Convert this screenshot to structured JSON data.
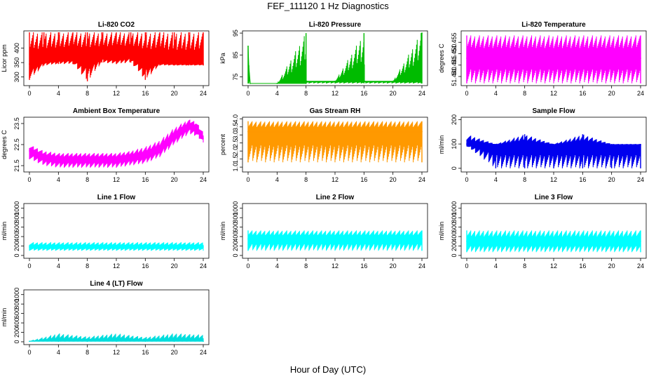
{
  "figure": {
    "title": "FEF_111120  1 Hz Diagnostics",
    "xlabel": "Hour of Day (UTC)"
  },
  "chart_data": [
    {
      "type": "line",
      "title": "Li-820 CO2",
      "ylabel": "Licor ppm",
      "color": "#ff0000",
      "xlim": [
        0,
        24
      ],
      "ylim": [
        270,
        460
      ],
      "xticks": [
        0,
        4,
        8,
        12,
        16,
        20,
        24
      ],
      "yticks": [
        300,
        350,
        400
      ],
      "series": [
        {
          "x": [
            0,
            2,
            4,
            6,
            8,
            10,
            12,
            14,
            16,
            18,
            20,
            22,
            24
          ],
          "y": [
            345,
            355,
            360,
            365,
            360,
            370,
            365,
            375,
            350,
            350,
            345,
            345,
            345
          ],
          "min": [
            290,
            340,
            345,
            345,
            285,
            350,
            345,
            350,
            290,
            340,
            340,
            340,
            340
          ],
          "max": [
            455,
            455,
            455,
            455,
            455,
            455,
            455,
            455,
            455,
            455,
            455,
            455,
            455
          ]
        }
      ]
    },
    {
      "type": "line",
      "title": "Li-820 Pressure",
      "ylabel": "kPa",
      "color": "#00bb00",
      "xlim": [
        0,
        24
      ],
      "ylim": [
        71,
        96
      ],
      "xticks": [
        0,
        4,
        8,
        12,
        16,
        20,
        24
      ],
      "yticks": [
        75,
        85,
        95
      ],
      "series": [
        {
          "x": [
            0,
            0.1,
            0.3,
            4,
            8,
            8.1,
            12,
            16,
            16.1,
            20,
            23.9,
            24
          ],
          "y": [
            89,
            80,
            72,
            72,
            72,
            73,
            73,
            73,
            73,
            73,
            73,
            95
          ],
          "min": [
            72,
            72,
            72,
            72,
            72,
            72,
            72,
            72,
            72,
            72,
            72,
            72
          ],
          "max": [
            89,
            80,
            72,
            72,
            95,
            73,
            73,
            95,
            73,
            73,
            95,
            95
          ]
        }
      ]
    },
    {
      "type": "area",
      "title": "Li-820 Temperature",
      "ylabel": "degrees C",
      "color": "#ff00ff",
      "xlim": [
        0,
        24
      ],
      "ylim": [
        51.436,
        51.46
      ],
      "xticks": [
        0,
        4,
        8,
        12,
        16,
        20,
        24
      ],
      "yticks": [
        51.44,
        51.445,
        51.45,
        51.455
      ],
      "series": [
        {
          "x": [
            0,
            24
          ],
          "y": [
            51.448,
            51.448
          ],
          "min": [
            51.437,
            51.437
          ],
          "max": [
            51.458,
            51.458
          ]
        }
      ]
    },
    {
      "type": "line",
      "title": "Ambient Box Temperature",
      "ylabel": "degrees C",
      "color": "#ff00ff",
      "xlim": [
        0,
        24
      ],
      "ylim": [
        21.2,
        23.8
      ],
      "xticks": [
        0,
        4,
        8,
        12,
        16,
        20,
        24
      ],
      "yticks": [
        21.5,
        22.5,
        23.5
      ],
      "series": [
        {
          "x": [
            0,
            2,
            4,
            6,
            8,
            10,
            12,
            14,
            16,
            18,
            20,
            22,
            23,
            24
          ],
          "y": [
            22.2,
            21.9,
            21.8,
            21.8,
            21.8,
            21.8,
            21.8,
            21.9,
            22.0,
            22.3,
            22.9,
            23.4,
            23.3,
            22.8
          ],
          "min": [
            21.8,
            21.5,
            21.4,
            21.4,
            21.4,
            21.4,
            21.4,
            21.5,
            21.6,
            21.9,
            22.5,
            23.0,
            22.9,
            22.6
          ],
          "max": [
            22.5,
            22.2,
            22.1,
            22.1,
            22.1,
            22.1,
            22.1,
            22.2,
            22.4,
            22.7,
            23.3,
            23.7,
            23.6,
            23.1
          ]
        }
      ]
    },
    {
      "type": "scatter",
      "title": "Gas Stream RH",
      "ylabel": "percent",
      "color": "#ff9900",
      "xlim": [
        0,
        24
      ],
      "ylim": [
        0.7,
        4.1
      ],
      "xticks": [
        0,
        4,
        8,
        12,
        16,
        20,
        24
      ],
      "yticks": [
        1.0,
        1.5,
        2.0,
        2.5,
        3.0,
        3.5,
        4.0
      ],
      "series": [
        {
          "x": [
            0,
            24
          ],
          "y": [
            3.2,
            3.2
          ],
          "min": [
            1.3,
            1.3
          ],
          "max": [
            3.85,
            3.85
          ]
        }
      ]
    },
    {
      "type": "line",
      "title": "Sample Flow",
      "ylabel": "ml/min",
      "color": "#0000ee",
      "xlim": [
        0,
        24
      ],
      "ylim": [
        -15,
        210
      ],
      "xticks": [
        0,
        4,
        8,
        12,
        16,
        20,
        24
      ],
      "yticks": [
        0,
        100,
        200
      ],
      "series": [
        {
          "x": [
            0,
            4,
            8,
            12,
            16,
            20,
            24
          ],
          "y": [
            100,
            97,
            97,
            97,
            97,
            97,
            97
          ],
          "min": [
            90,
            0,
            0,
            0,
            0,
            0,
            0
          ],
          "max": [
            140,
            100,
            140,
            100,
            140,
            100,
            100
          ]
        }
      ]
    },
    {
      "type": "area",
      "title": "Line 1 Flow",
      "ylabel": "ml/min",
      "color": "#00ffff",
      "xlim": [
        0,
        24
      ],
      "ylim": [
        -60,
        1100
      ],
      "xticks": [
        0,
        4,
        8,
        12,
        16,
        20,
        24
      ],
      "yticks": [
        0,
        200,
        400,
        600,
        800,
        1000
      ],
      "series": [
        {
          "x": [
            0,
            24
          ],
          "y": [
            180,
            180
          ],
          "min": [
            100,
            100
          ],
          "max": [
            280,
            280
          ]
        }
      ]
    },
    {
      "type": "area",
      "title": "Line 2 Flow",
      "ylabel": "ml/min",
      "color": "#00ffff",
      "xlim": [
        0,
        24
      ],
      "ylim": [
        -60,
        1100
      ],
      "xticks": [
        0,
        4,
        8,
        12,
        16,
        20,
        24
      ],
      "yticks": [
        0,
        200,
        400,
        600,
        800,
        1000
      ],
      "series": [
        {
          "x": [
            0,
            24
          ],
          "y": [
            350,
            350
          ],
          "min": [
            100,
            100
          ],
          "max": [
            530,
            530
          ]
        }
      ]
    },
    {
      "type": "area",
      "title": "Line 3 Flow",
      "ylabel": "ml/min",
      "color": "#00ffff",
      "xlim": [
        0,
        24
      ],
      "ylim": [
        -60,
        1100
      ],
      "xticks": [
        0,
        4,
        8,
        12,
        16,
        20,
        24
      ],
      "yticks": [
        0,
        200,
        400,
        600,
        800,
        1000
      ],
      "series": [
        {
          "x": [
            0,
            24
          ],
          "y": [
            300,
            300
          ],
          "min": [
            70,
            70
          ],
          "max": [
            530,
            530
          ]
        }
      ]
    },
    {
      "type": "line",
      "title": "Line 4 (LT) Flow",
      "ylabel": "ml/min",
      "color": "#00dddd",
      "xlim": [
        0,
        24
      ],
      "ylim": [
        -60,
        1100
      ],
      "xticks": [
        0,
        4,
        8,
        12,
        16,
        20,
        24
      ],
      "yticks": [
        0,
        200,
        400,
        600,
        800,
        1000
      ],
      "series": [
        {
          "x": [
            0,
            4,
            8,
            12,
            16,
            20,
            24
          ],
          "y": [
            10,
            10,
            10,
            10,
            10,
            10,
            10
          ],
          "min": [
            5,
            5,
            5,
            5,
            5,
            5,
            5
          ],
          "max": [
            20,
            180,
            110,
            180,
            100,
            180,
            150
          ]
        }
      ]
    }
  ]
}
